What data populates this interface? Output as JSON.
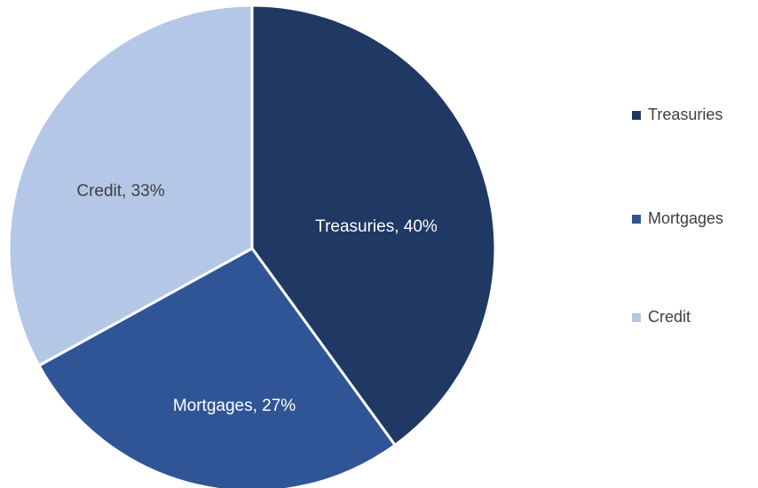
{
  "chart_data": {
    "type": "pie",
    "title": "",
    "categories": [
      "Treasuries",
      "Mortgages",
      "Credit"
    ],
    "values": [
      40,
      27,
      33
    ],
    "data_labels": [
      "Treasuries, 40%",
      "Mortgages, 27%",
      "Credit, 33%"
    ],
    "colors": [
      "#1f3864",
      "#2f5597",
      "#b4c7e7"
    ],
    "label_colors": [
      "#ffffff",
      "#ffffff",
      "#404040"
    ],
    "start_angle": "12 o'clock",
    "direction": "clockwise",
    "legend": {
      "placement": "right",
      "entries": [
        "Treasuries",
        "Mortgages",
        "Credit"
      ]
    }
  }
}
